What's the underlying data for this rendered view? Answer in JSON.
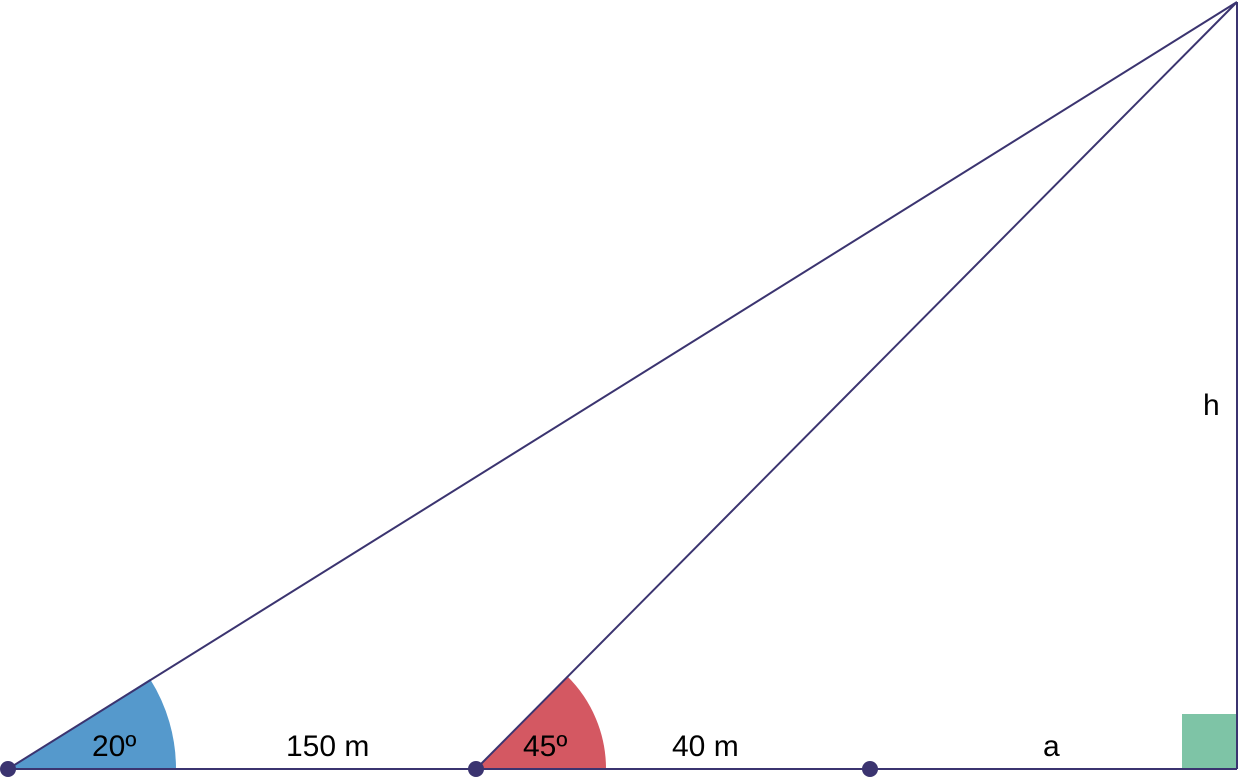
{
  "diagram": {
    "angles": {
      "angle_a": "20º",
      "angle_b": "45º"
    },
    "segments": {
      "d1": "150 m",
      "d2": "40 m",
      "d3": "a"
    },
    "height": "h"
  },
  "colors": {
    "line": "#3b3470",
    "point": "#3b3470",
    "angle_20": "#5599cc",
    "angle_45": "#d45862",
    "right_angle": "#7ec4a6"
  }
}
